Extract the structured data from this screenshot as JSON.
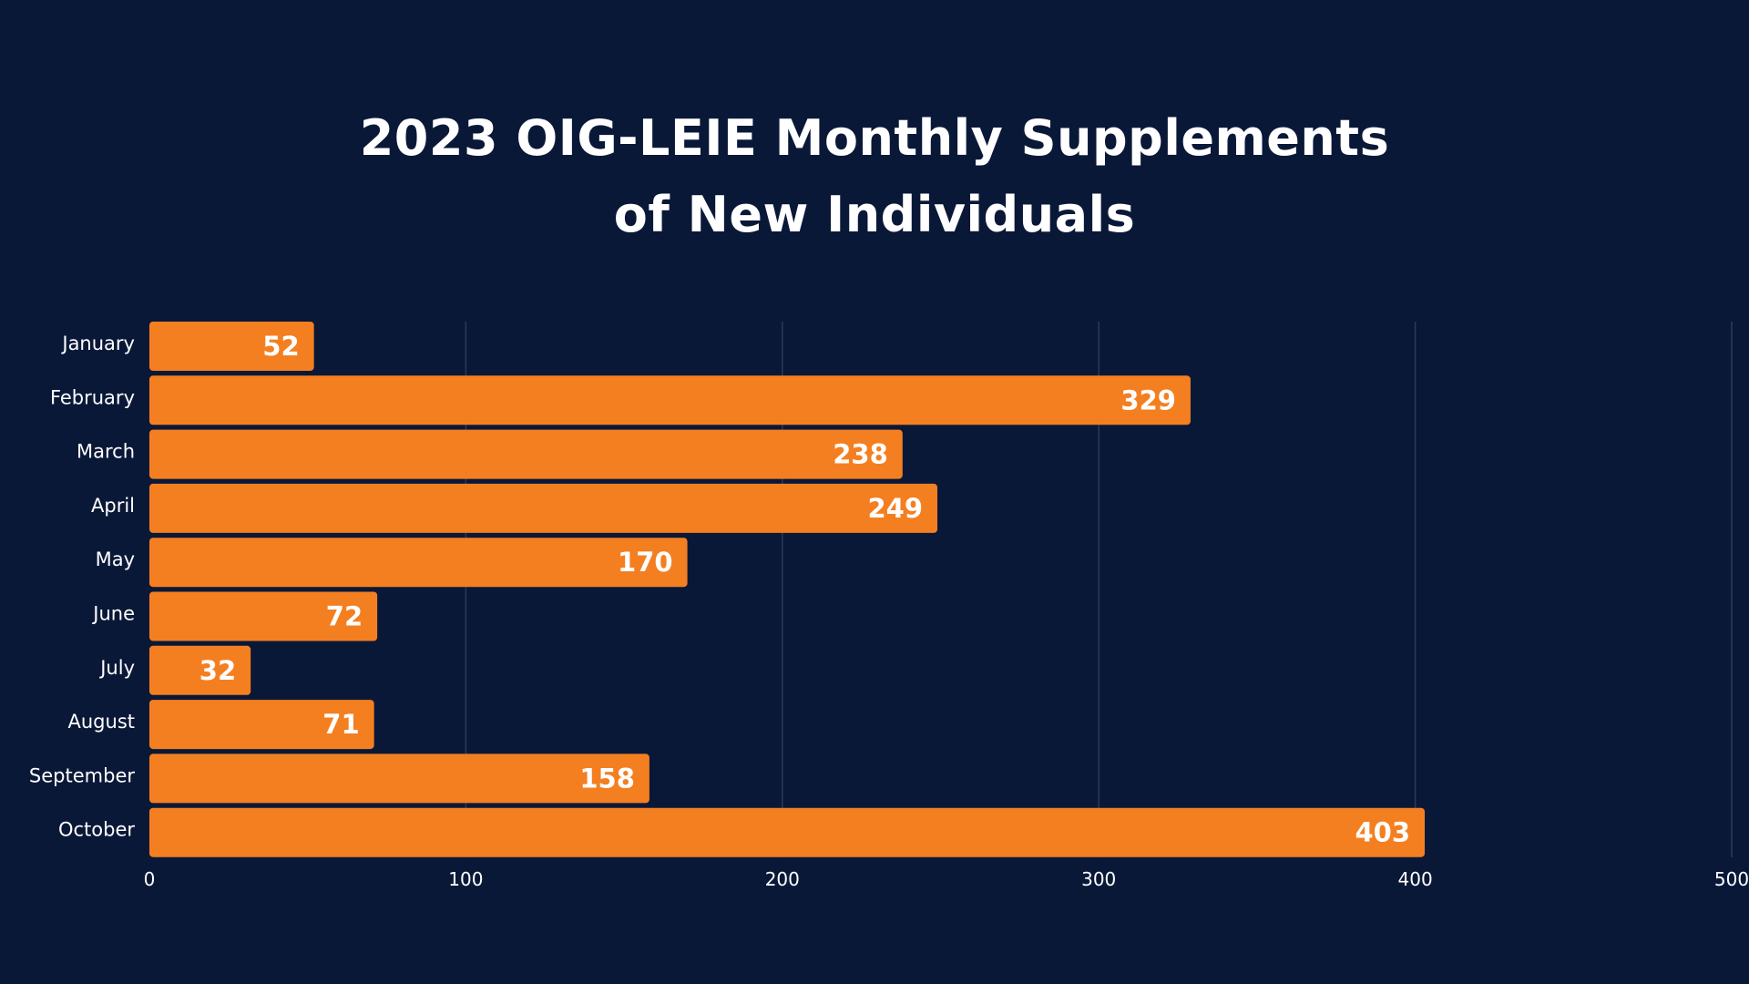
{
  "chart_data": {
    "type": "bar",
    "orientation": "horizontal",
    "title_lines": [
      "2023 OIG-LEIE Monthly Supplements",
      "of New Individuals"
    ],
    "categories": [
      "January",
      "February",
      "March",
      "April",
      "May",
      "June",
      "July",
      "August",
      "September",
      "October"
    ],
    "values": [
      52,
      329,
      238,
      249,
      170,
      72,
      32,
      71,
      158,
      403
    ],
    "xlabel": "",
    "ylabel": "",
    "xlim": [
      0,
      500
    ],
    "xticks": [
      "0",
      "100",
      "200",
      "300",
      "400",
      "500"
    ],
    "grid": "vertical",
    "data_labels": true,
    "colors": {
      "background": "#0a1838",
      "bar": "#f47f20",
      "grid": "#2a3a5a",
      "text": "#ffffff"
    }
  }
}
